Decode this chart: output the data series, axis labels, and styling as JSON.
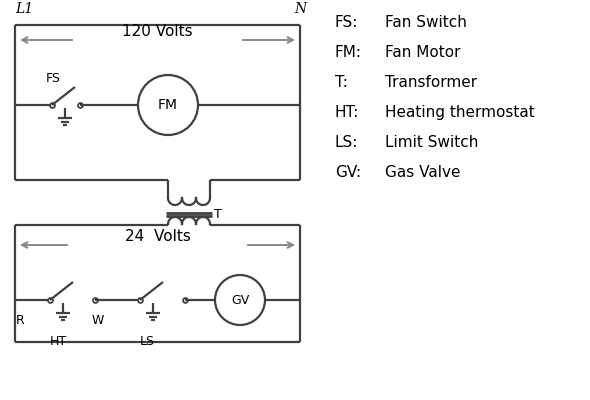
{
  "bg_color": "#ffffff",
  "line_color": "#404040",
  "arrow_color": "#888888",
  "text_color": "#000000",
  "legend_items": [
    [
      "FS:",
      "Fan Switch"
    ],
    [
      "FM:",
      "Fan Motor"
    ],
    [
      "T:",
      "Transformer"
    ],
    [
      "HT:",
      "Heating thermostat"
    ],
    [
      "LS:",
      "Limit Switch"
    ],
    [
      "GV:",
      "Gas Valve"
    ]
  ],
  "L1_label": "L1",
  "N_label": "N",
  "v120_label": "120 Volts",
  "v24_label": "24  Volts",
  "T_label": "T",
  "R_label": "R",
  "W_label": "W",
  "HT_label": "HT",
  "LS_label": "LS",
  "FS_label": "FS",
  "FM_label": "FM",
  "GV_label": "GV"
}
